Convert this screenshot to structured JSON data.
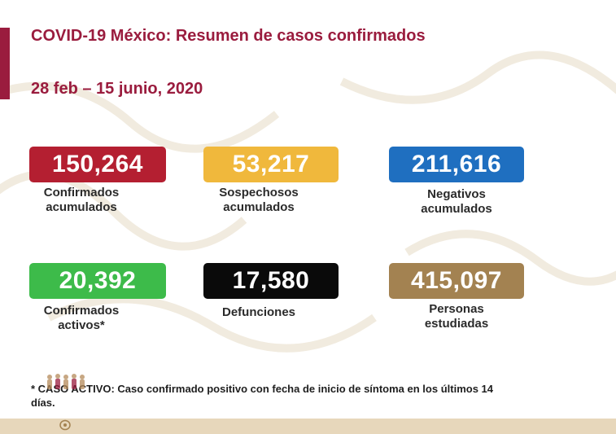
{
  "header": {
    "title": "COVID-19 México: Resumen de casos confirmados",
    "date_range": "28 feb – 15 junio, 2020"
  },
  "stats": [
    {
      "id": "confirmados",
      "value": "150,264",
      "label_line1": "Confirmados",
      "label_line2": "acumulados",
      "color": "#b41f31"
    },
    {
      "id": "sospechosos",
      "value": "53,217",
      "label_line1": "Sospechosos",
      "label_line2": "acumulados",
      "color": "#f0b83c"
    },
    {
      "id": "negativos",
      "value": "211,616",
      "label_line1": "Negativos",
      "label_line2": "acumulados",
      "color": "#1f6fc0"
    },
    {
      "id": "activos",
      "value": "20,392",
      "label_line1": "Confirmados",
      "label_line2": "activos*",
      "color": "#3dbb4a"
    },
    {
      "id": "defunciones",
      "value": "17,580",
      "label_line1": "Defunciones",
      "label_line2": "",
      "color": "#0a0a0a"
    },
    {
      "id": "estudiadas",
      "value": "415,097",
      "label_line1": "Personas",
      "label_line2": "estudiadas",
      "color": "#a38251"
    }
  ],
  "footnote": "* CASO ACTIVO: Caso confirmado positivo con fecha de inicio de síntoma en los últimos 14 días.",
  "theme": {
    "accent": "#9a1c3e",
    "band": "#e7d7bb"
  }
}
